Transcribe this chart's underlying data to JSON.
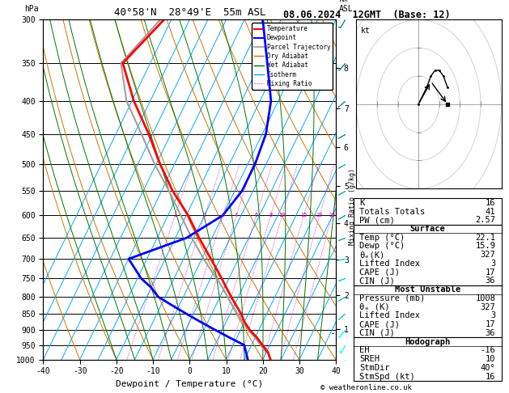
{
  "title_left": "40°58'N  28°49'E  55m ASL",
  "title_right": "08.06.2024  12GMT  (Base: 12)",
  "xlabel": "Dewpoint / Temperature (°C)",
  "ylabel_left": "hPa",
  "temp_data": {
    "pressure": [
      1000,
      975,
      950,
      925,
      900,
      875,
      850,
      825,
      800,
      775,
      750,
      700,
      650,
      600,
      550,
      500,
      450,
      400,
      350,
      300
    ],
    "temperature": [
      22.1,
      20.5,
      18.0,
      15.5,
      12.5,
      10.0,
      8.0,
      5.5,
      3.0,
      0.5,
      -2.0,
      -7.5,
      -13.5,
      -19.5,
      -27.0,
      -34.0,
      -41.0,
      -49.5,
      -57.5,
      -52.0
    ]
  },
  "dewp_data": {
    "pressure": [
      1000,
      975,
      950,
      925,
      900,
      875,
      850,
      825,
      800,
      775,
      750,
      700,
      650,
      600,
      550,
      500,
      450,
      400,
      350,
      300
    ],
    "dewpoint": [
      15.9,
      14.5,
      13.0,
      8.0,
      3.0,
      -2.0,
      -7.0,
      -12.0,
      -17.0,
      -20.0,
      -24.0,
      -30.0,
      -17.0,
      -10.0,
      -8.0,
      -8.0,
      -9.0,
      -12.0,
      -18.0,
      -25.0
    ]
  },
  "parcel_data": {
    "pressure": [
      1008,
      975,
      950,
      925,
      900,
      875,
      850,
      825,
      800,
      775,
      750,
      700,
      650,
      600,
      550,
      500,
      450,
      400,
      350,
      300
    ],
    "temperature": [
      22.1,
      20.0,
      17.5,
      15.0,
      12.0,
      9.5,
      7.0,
      4.5,
      2.0,
      -0.5,
      -3.5,
      -9.5,
      -15.5,
      -21.5,
      -28.0,
      -35.5,
      -43.0,
      -51.5,
      -58.0,
      -53.0
    ]
  },
  "temp_color": "#ff0000",
  "dewp_color": "#0000ff",
  "parcel_color": "#a0a0a0",
  "dry_adiabat_color": "#cc7700",
  "wet_adiabat_color": "#007700",
  "isotherm_color": "#00aaff",
  "mix_ratio_color": "#cc00cc",
  "background_color": "#ffffff",
  "mixing_ratio_values": [
    1,
    2,
    3,
    4,
    6,
    8,
    10,
    15,
    20,
    25
  ],
  "lcl_pressure": 912,
  "pressure_levels": [
    300,
    350,
    400,
    450,
    500,
    550,
    600,
    650,
    700,
    750,
    800,
    850,
    900,
    950,
    1000
  ],
  "T_min": -40,
  "T_max": 40,
  "P_min": 300,
  "P_max": 1000,
  "total_skew_T": 45,
  "stats": {
    "K": 16,
    "Totals_Totals": 41,
    "PW_cm": 2.57,
    "Surface_Temp": "22.1",
    "Surface_Dewp": "15.9",
    "Surface_ThetaE": "327",
    "Surface_LI": "3",
    "Surface_CAPE": "17",
    "Surface_CIN": "36",
    "MU_Pressure": "1008",
    "MU_ThetaE": "327",
    "MU_LI": "3",
    "MU_CAPE": "17",
    "MU_CIN": "36",
    "Hodo_EH": "-16",
    "Hodo_SREH": "10",
    "Hodo_StmDir": "40°",
    "Hodo_StmSpd": "16"
  },
  "footer": "© weatheronline.co.uk",
  "wind_barb_pressures": [
    1000,
    950,
    900,
    850,
    800,
    750,
    700,
    650,
    600,
    550,
    500,
    450,
    400,
    350,
    300
  ],
  "wind_barb_speeds": [
    5,
    5,
    8,
    8,
    10,
    10,
    12,
    10,
    10,
    8,
    8,
    8,
    8,
    8,
    10
  ],
  "wind_barb_dirs": [
    200,
    210,
    220,
    230,
    240,
    250,
    260,
    250,
    240,
    240,
    240,
    240,
    230,
    220,
    210
  ]
}
